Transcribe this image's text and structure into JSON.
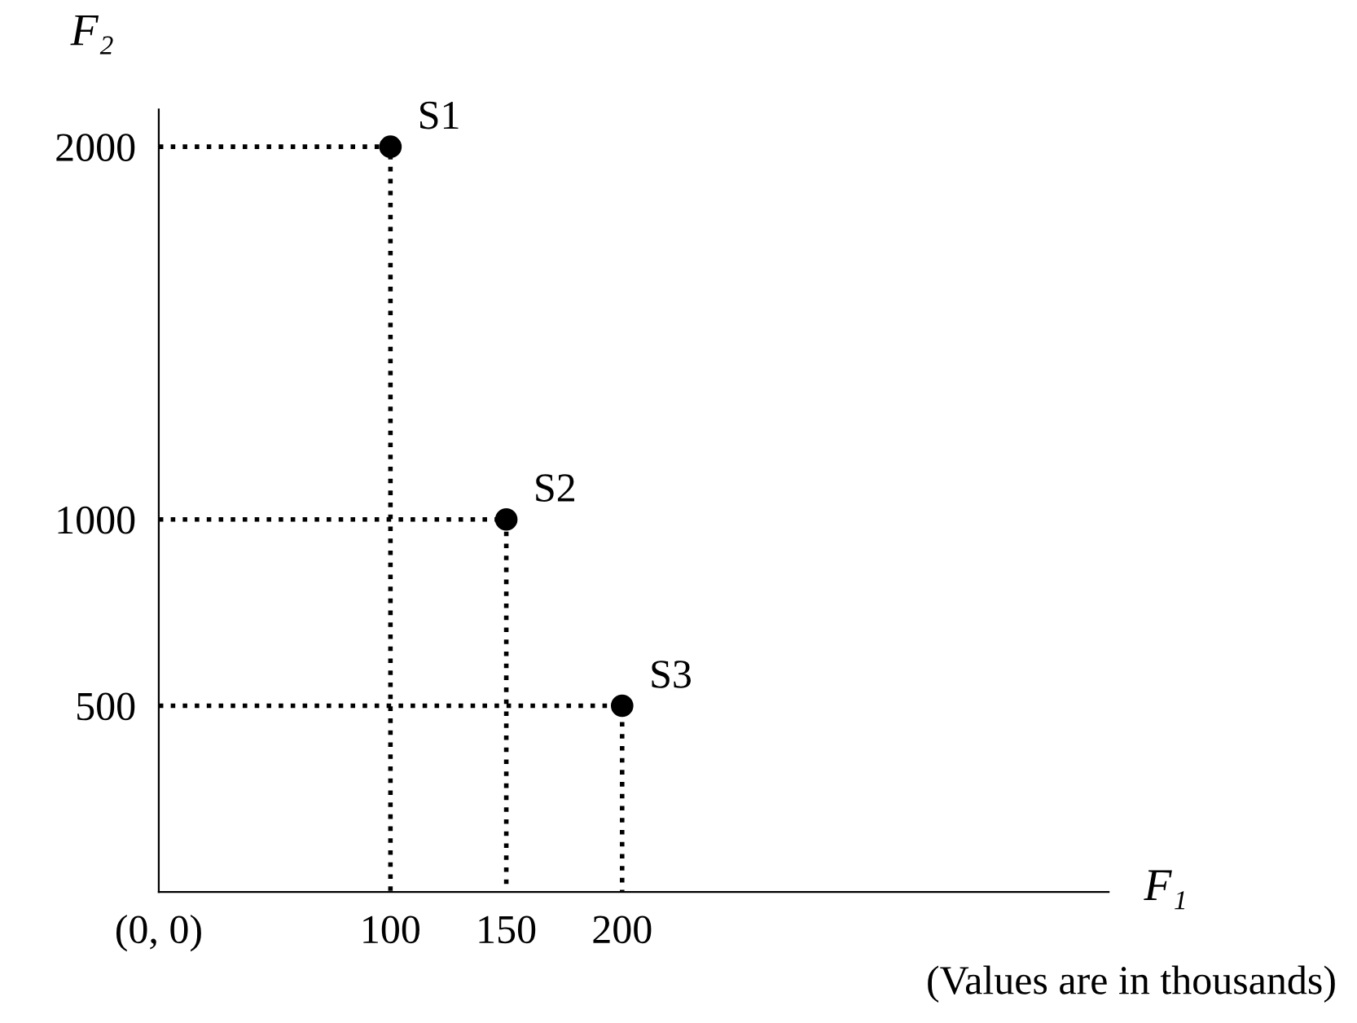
{
  "chart_data": {
    "type": "scatter",
    "xlabel": "F₁",
    "ylabel": "F₂",
    "series": [
      {
        "type": "line",
        "x": [
          0,
          100,
          100
        ],
        "values": [
          2000,
          2000,
          0
        ],
        "color": "#000000",
        "line_style": "dotted",
        "marker": "none"
      },
      {
        "type": "line",
        "x": [
          0,
          150,
          150
        ],
        "values": [
          1000,
          1000,
          0
        ],
        "color": "#000000",
        "line_style": "dotted",
        "marker": "none"
      },
      {
        "type": "line",
        "x": [
          0,
          200,
          200
        ],
        "values": [
          500,
          500,
          0
        ],
        "color": "#000000",
        "line_style": "dotted",
        "marker": "none"
      },
      {
        "x": [
          100,
          150,
          200
        ],
        "values": [
          2000,
          1000,
          500
        ],
        "color": "#000000",
        "marker": "circle"
      }
    ],
    "xlim": [
      0,
      410
    ],
    "ylim": [
      0,
      2100
    ],
    "xticks": [
      {
        "value": 0,
        "label": "(0, 0)"
      },
      100,
      150,
      200
    ],
    "yticks": [
      500,
      1000,
      2000
    ],
    "grid": false,
    "legend": false,
    "annotations": [
      {
        "text": "S1",
        "x": 100,
        "y": 2000
      },
      {
        "text": "S2",
        "x": 150,
        "y": 1000
      },
      {
        "text": "S3",
        "x": 200,
        "y": 500
      },
      "(Values are in thousands)"
    ]
  }
}
